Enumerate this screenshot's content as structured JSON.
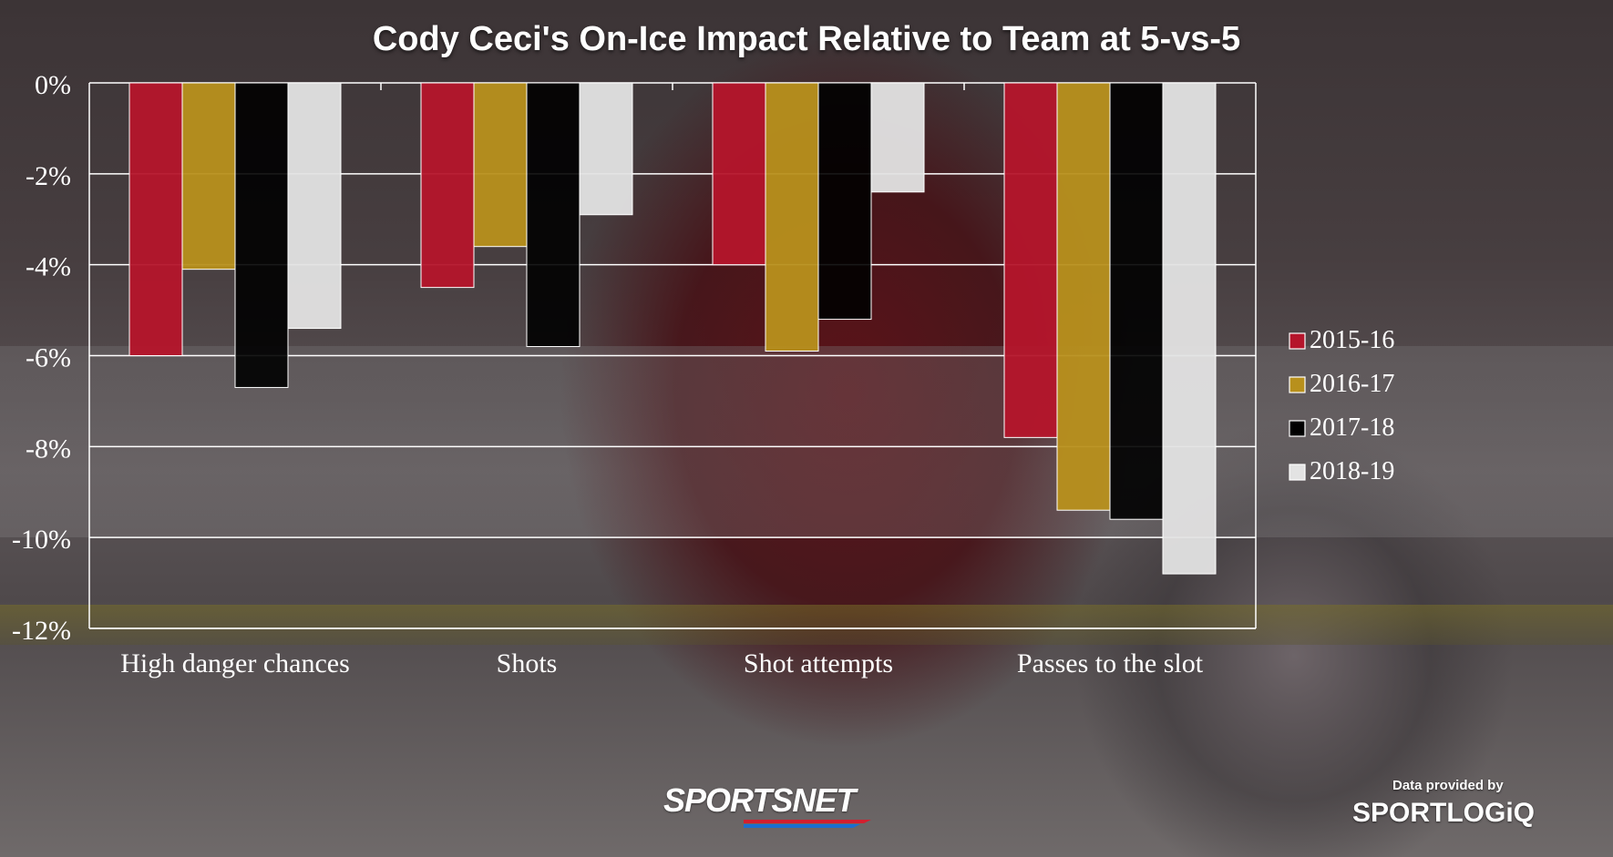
{
  "chart_data": {
    "type": "bar",
    "title": "Cody Ceci's On-Ice Impact Relative to Team at 5-vs-5",
    "xlabel": "",
    "ylabel": "",
    "ylim": [
      -12,
      0
    ],
    "y_ticks": [
      0,
      -2,
      -4,
      -6,
      -8,
      -10,
      -12
    ],
    "y_tick_labels": [
      "0%",
      "-2%",
      "-4%",
      "-6%",
      "-8%",
      "-10%",
      "-12%"
    ],
    "categories": [
      "High danger chances",
      "Shots",
      "Shot attempts",
      "Passes to the slot"
    ],
    "series": [
      {
        "name": "2015-16",
        "color": "#b5152b",
        "values": [
          -6.0,
          -4.5,
          -4.0,
          -7.8
        ]
      },
      {
        "name": "2016-17",
        "color": "#b8901c",
        "values": [
          -4.1,
          -3.6,
          -5.9,
          -9.4
        ]
      },
      {
        "name": "2017-18",
        "color": "#000000",
        "values": [
          -6.7,
          -5.8,
          -5.2,
          -9.6
        ]
      },
      {
        "name": "2018-19",
        "color": "#e3e3e3",
        "values": [
          -5.4,
          -2.9,
          -2.4,
          -10.8
        ]
      }
    ],
    "grid": true,
    "legend_position": "right"
  },
  "branding": {
    "sportsnet": "SPORTSNET",
    "credit_label": "Data provided by",
    "credit_logo": "SPORTLOGiQ"
  }
}
